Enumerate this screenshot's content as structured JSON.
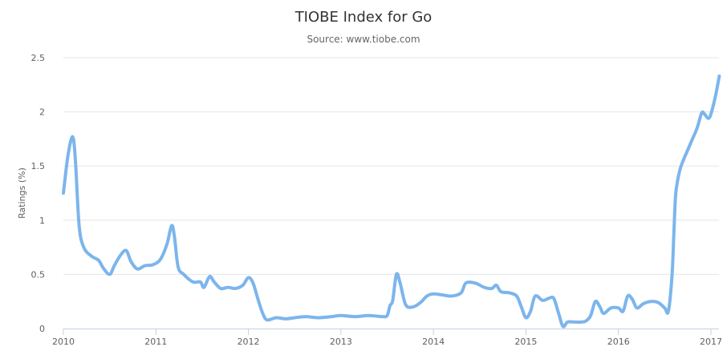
{
  "chart_data": {
    "type": "line",
    "title": "TIOBE Index for Go",
    "subtitle": "Source: www.tiobe.com",
    "ylabel": "Ratings (%)",
    "xlabel": "",
    "xlim": [
      2010,
      2017.1
    ],
    "ylim": [
      0,
      2.5
    ],
    "x_ticks": [
      2010,
      2011,
      2012,
      2013,
      2014,
      2015,
      2016,
      2017
    ],
    "y_ticks": [
      0,
      0.5,
      1,
      1.5,
      2,
      2.5
    ],
    "y_tick_labels": [
      "0",
      "0.5",
      "1",
      "1.5",
      "2",
      "2.5"
    ],
    "grid": true,
    "line_color": "#7cb5ec",
    "series": [
      {
        "name": "",
        "points": [
          [
            2010.0,
            1.25
          ],
          [
            2010.05,
            1.6
          ],
          [
            2010.1,
            1.77
          ],
          [
            2010.13,
            1.55
          ],
          [
            2010.17,
            0.95
          ],
          [
            2010.22,
            0.75
          ],
          [
            2010.3,
            0.67
          ],
          [
            2010.38,
            0.63
          ],
          [
            2010.43,
            0.56
          ],
          [
            2010.5,
            0.5
          ],
          [
            2010.55,
            0.58
          ],
          [
            2010.62,
            0.68
          ],
          [
            2010.68,
            0.72
          ],
          [
            2010.73,
            0.62
          ],
          [
            2010.8,
            0.55
          ],
          [
            2010.88,
            0.58
          ],
          [
            2010.97,
            0.59
          ],
          [
            2011.05,
            0.64
          ],
          [
            2011.12,
            0.78
          ],
          [
            2011.17,
            0.95
          ],
          [
            2011.2,
            0.85
          ],
          [
            2011.24,
            0.57
          ],
          [
            2011.3,
            0.5
          ],
          [
            2011.4,
            0.43
          ],
          [
            2011.48,
            0.43
          ],
          [
            2011.52,
            0.38
          ],
          [
            2011.58,
            0.48
          ],
          [
            2011.63,
            0.43
          ],
          [
            2011.7,
            0.37
          ],
          [
            2011.78,
            0.38
          ],
          [
            2011.86,
            0.37
          ],
          [
            2011.94,
            0.4
          ],
          [
            2012.0,
            0.47
          ],
          [
            2012.05,
            0.42
          ],
          [
            2012.1,
            0.28
          ],
          [
            2012.15,
            0.15
          ],
          [
            2012.2,
            0.08
          ],
          [
            2012.3,
            0.1
          ],
          [
            2012.4,
            0.09
          ],
          [
            2012.5,
            0.1
          ],
          [
            2012.62,
            0.11
          ],
          [
            2012.75,
            0.1
          ],
          [
            2012.9,
            0.11
          ],
          [
            2013.0,
            0.12
          ],
          [
            2013.15,
            0.11
          ],
          [
            2013.3,
            0.12
          ],
          [
            2013.45,
            0.11
          ],
          [
            2013.5,
            0.12
          ],
          [
            2013.53,
            0.21
          ],
          [
            2013.56,
            0.26
          ],
          [
            2013.6,
            0.5
          ],
          [
            2013.64,
            0.42
          ],
          [
            2013.7,
            0.22
          ],
          [
            2013.78,
            0.2
          ],
          [
            2013.86,
            0.24
          ],
          [
            2013.93,
            0.3
          ],
          [
            2014.0,
            0.32
          ],
          [
            2014.1,
            0.31
          ],
          [
            2014.2,
            0.3
          ],
          [
            2014.3,
            0.33
          ],
          [
            2014.35,
            0.42
          ],
          [
            2014.45,
            0.42
          ],
          [
            2014.55,
            0.38
          ],
          [
            2014.63,
            0.37
          ],
          [
            2014.68,
            0.4
          ],
          [
            2014.73,
            0.34
          ],
          [
            2014.82,
            0.33
          ],
          [
            2014.9,
            0.3
          ],
          [
            2014.95,
            0.2
          ],
          [
            2015.0,
            0.1
          ],
          [
            2015.05,
            0.16
          ],
          [
            2015.1,
            0.3
          ],
          [
            2015.18,
            0.26
          ],
          [
            2015.25,
            0.28
          ],
          [
            2015.3,
            0.28
          ],
          [
            2015.35,
            0.15
          ],
          [
            2015.4,
            0.02
          ],
          [
            2015.45,
            0.06
          ],
          [
            2015.53,
            0.06
          ],
          [
            2015.6,
            0.06
          ],
          [
            2015.65,
            0.07
          ],
          [
            2015.7,
            0.12
          ],
          [
            2015.75,
            0.25
          ],
          [
            2015.8,
            0.2
          ],
          [
            2015.84,
            0.14
          ],
          [
            2015.92,
            0.19
          ],
          [
            2016.0,
            0.19
          ],
          [
            2016.05,
            0.16
          ],
          [
            2016.1,
            0.3
          ],
          [
            2016.15,
            0.27
          ],
          [
            2016.2,
            0.19
          ],
          [
            2016.27,
            0.23
          ],
          [
            2016.35,
            0.25
          ],
          [
            2016.43,
            0.24
          ],
          [
            2016.5,
            0.19
          ],
          [
            2016.54,
            0.16
          ],
          [
            2016.58,
            0.5
          ],
          [
            2016.6,
            0.9
          ],
          [
            2016.62,
            1.25
          ],
          [
            2016.66,
            1.45
          ],
          [
            2016.7,
            1.55
          ],
          [
            2016.75,
            1.65
          ],
          [
            2016.8,
            1.75
          ],
          [
            2016.85,
            1.85
          ],
          [
            2016.9,
            1.99
          ],
          [
            2016.93,
            1.98
          ],
          [
            2016.97,
            1.94
          ],
          [
            2017.0,
            1.98
          ],
          [
            2017.05,
            2.15
          ],
          [
            2017.09,
            2.33
          ]
        ]
      }
    ]
  }
}
